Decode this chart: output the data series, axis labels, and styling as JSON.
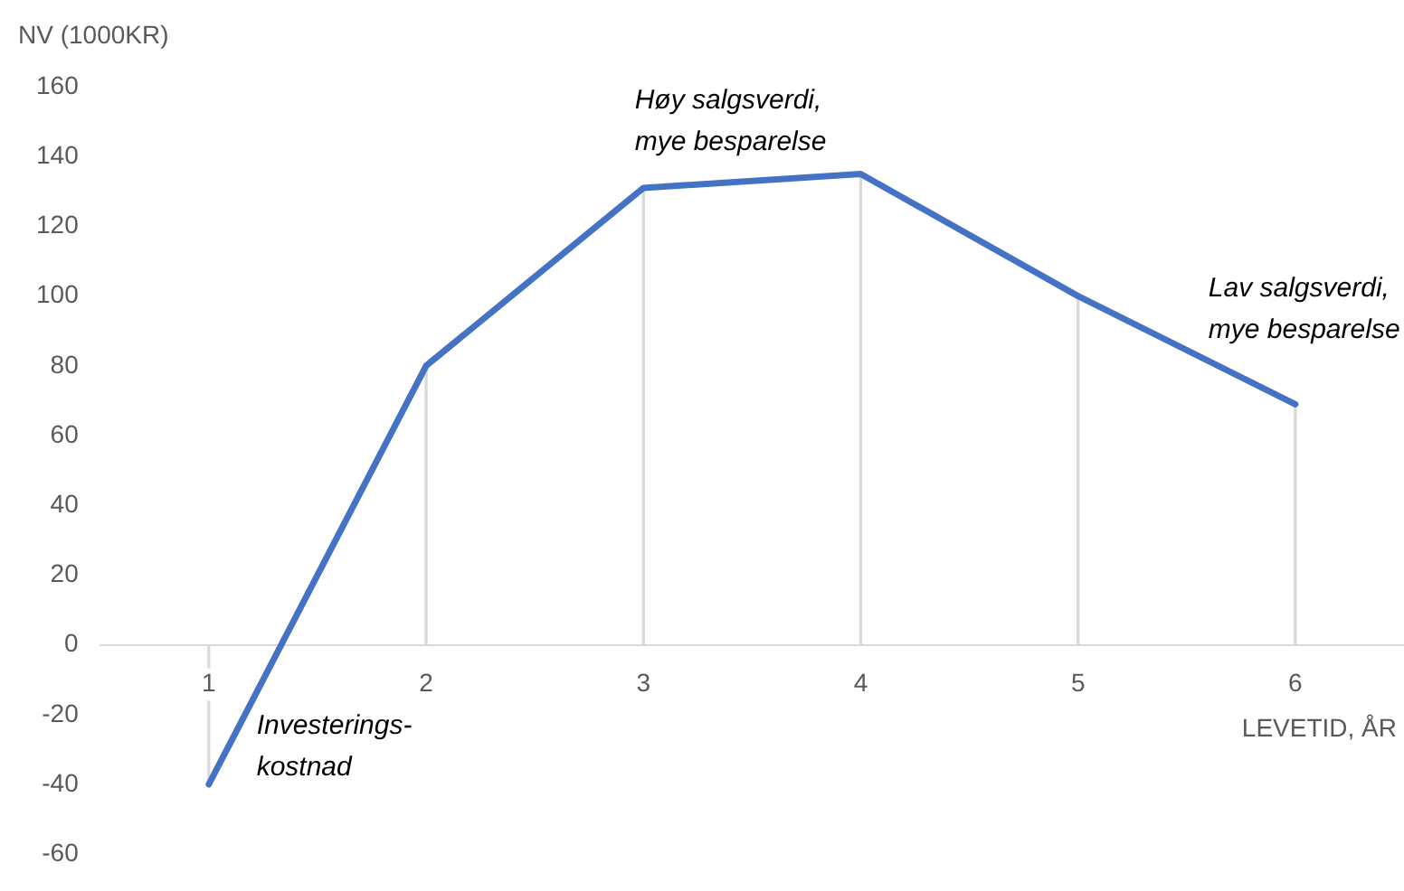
{
  "chart_data": {
    "type": "line",
    "ylabel": "NV (1000KR)",
    "xlabel": "LEVETID, ÅR",
    "categories": [
      "1",
      "2",
      "3",
      "4",
      "5",
      "6"
    ],
    "series": [
      {
        "color": "#4472c4",
        "values": [
          -40,
          80,
          131,
          135,
          100,
          69
        ]
      },
      {
        "type": "bar",
        "color": "#d9d9d9",
        "values": [
          -40,
          80,
          131,
          135,
          100,
          69
        ]
      }
    ],
    "ylim": [
      -60,
      160
    ],
    "yticks": [
      -60,
      -40,
      -20,
      0,
      20,
      40,
      60,
      80,
      100,
      120,
      140,
      160
    ],
    "grid": false,
    "legend": false,
    "marker": "none",
    "line_style": "solid",
    "annotations": [
      "Høy salgsverdi,\nmye besparelse",
      "Lav salgsverdi,\nmye besparelse",
      "Investerings-\nkostnad"
    ]
  }
}
